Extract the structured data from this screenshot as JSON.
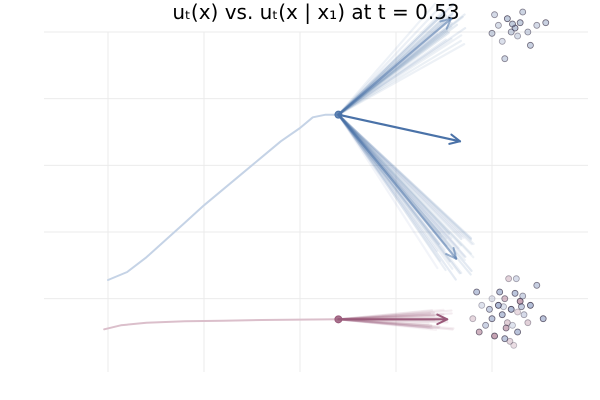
{
  "chart_data": {
    "type": "line",
    "title": "uₜ(x) vs. uₜ(x | x₁) at t = 0.53",
    "xlabel": "",
    "ylabel": "",
    "xlim": [
      -2.0,
      2.25
    ],
    "ylim": [
      -1.55,
      1.0
    ],
    "grid": true,
    "grid_x": [
      -1.5,
      -0.75,
      0.0,
      0.75,
      1.5
    ],
    "grid_y": [
      -1.0,
      -0.5,
      0.0,
      0.5,
      1.0
    ],
    "colors": {
      "blue": "#4a72a8",
      "blue_light": "#c5d3e6",
      "maroon": "#9a5a7a",
      "maroon_light": "#dbbfcb",
      "point_dark": "#3a3248",
      "grid": "#ebebeb"
    },
    "series": [
      {
        "role": "blue-trajectory",
        "x": [
          -1.5,
          -1.35,
          -1.2,
          -1.05,
          -0.9,
          -0.75,
          -0.6,
          -0.45,
          -0.3,
          -0.15,
          0.0,
          0.1,
          0.2,
          0.3
        ],
        "y": [
          -0.86,
          -0.8,
          -0.69,
          -0.56,
          -0.43,
          -0.3,
          -0.18,
          -0.06,
          0.06,
          0.18,
          0.28,
          0.36,
          0.38,
          0.38
        ]
      },
      {
        "role": "maroon-trajectory",
        "x": [
          -1.53,
          -1.4,
          -1.2,
          -0.9,
          -0.6,
          -0.3,
          0.0,
          0.3
        ],
        "y": [
          -1.23,
          -1.2,
          -1.18,
          -1.17,
          -1.165,
          -1.16,
          -1.157,
          -1.155
        ]
      }
    ],
    "arrows": [
      {
        "role": "blue-mean-upper",
        "from": [
          0.3,
          0.38
        ],
        "to": [
          1.18,
          1.1
        ]
      },
      {
        "role": "blue-mean-lower",
        "from": [
          0.3,
          0.38
        ],
        "to": [
          1.22,
          -0.7
        ]
      },
      {
        "role": "blue-marginal",
        "from": [
          0.3,
          0.38
        ],
        "to": [
          1.25,
          0.18
        ]
      },
      {
        "role": "maroon-marginal",
        "from": [
          0.3,
          -1.155
        ],
        "to": [
          1.15,
          -1.155
        ]
      }
    ],
    "start_points": [
      {
        "role": "blue",
        "x": 0.3,
        "y": 0.38
      },
      {
        "role": "maroon",
        "x": 0.3,
        "y": -1.155
      }
    ],
    "scatter_upper": [
      [
        1.55,
        1.5
      ],
      [
        1.62,
        1.55
      ],
      [
        1.68,
        1.48
      ],
      [
        1.72,
        1.52
      ],
      [
        1.65,
        1.45
      ],
      [
        1.78,
        1.45
      ],
      [
        1.58,
        1.38
      ],
      [
        1.7,
        1.42
      ],
      [
        1.52,
        1.58
      ],
      [
        1.85,
        1.5
      ],
      [
        1.6,
        1.25
      ],
      [
        1.8,
        1.35
      ],
      [
        1.5,
        1.44
      ],
      [
        1.74,
        1.6
      ],
      [
        1.92,
        1.52
      ],
      [
        1.66,
        1.51
      ]
    ],
    "scatter_lower": [
      [
        1.55,
        -1.05
      ],
      [
        1.6,
        -1.0
      ],
      [
        1.65,
        -1.08
      ],
      [
        1.7,
        -1.1
      ],
      [
        1.72,
        -1.02
      ],
      [
        1.68,
        -0.96
      ],
      [
        1.58,
        -1.12
      ],
      [
        1.62,
        -1.18
      ],
      [
        1.66,
        -1.2
      ],
      [
        1.7,
        -1.25
      ],
      [
        1.5,
        -1.15
      ],
      [
        1.45,
        -1.2
      ],
      [
        1.48,
        -1.08
      ],
      [
        1.75,
        -1.12
      ],
      [
        1.74,
        -0.98
      ],
      [
        1.63,
        -0.85
      ],
      [
        1.69,
        -0.85
      ],
      [
        1.56,
        -0.95
      ],
      [
        1.4,
        -1.25
      ],
      [
        1.42,
        -1.05
      ],
      [
        1.52,
        -1.28
      ],
      [
        1.64,
        -1.32
      ],
      [
        1.67,
        -1.35
      ],
      [
        1.8,
        -1.05
      ],
      [
        1.78,
        -1.18
      ],
      [
        1.6,
        -1.3
      ],
      [
        1.35,
        -1.15
      ],
      [
        1.5,
        -1.0
      ],
      [
        1.73,
        -1.06
      ],
      [
        1.59,
        -1.06
      ],
      [
        1.61,
        -1.22
      ],
      [
        1.85,
        -0.9
      ],
      [
        1.9,
        -1.15
      ],
      [
        1.38,
        -0.95
      ]
    ]
  }
}
